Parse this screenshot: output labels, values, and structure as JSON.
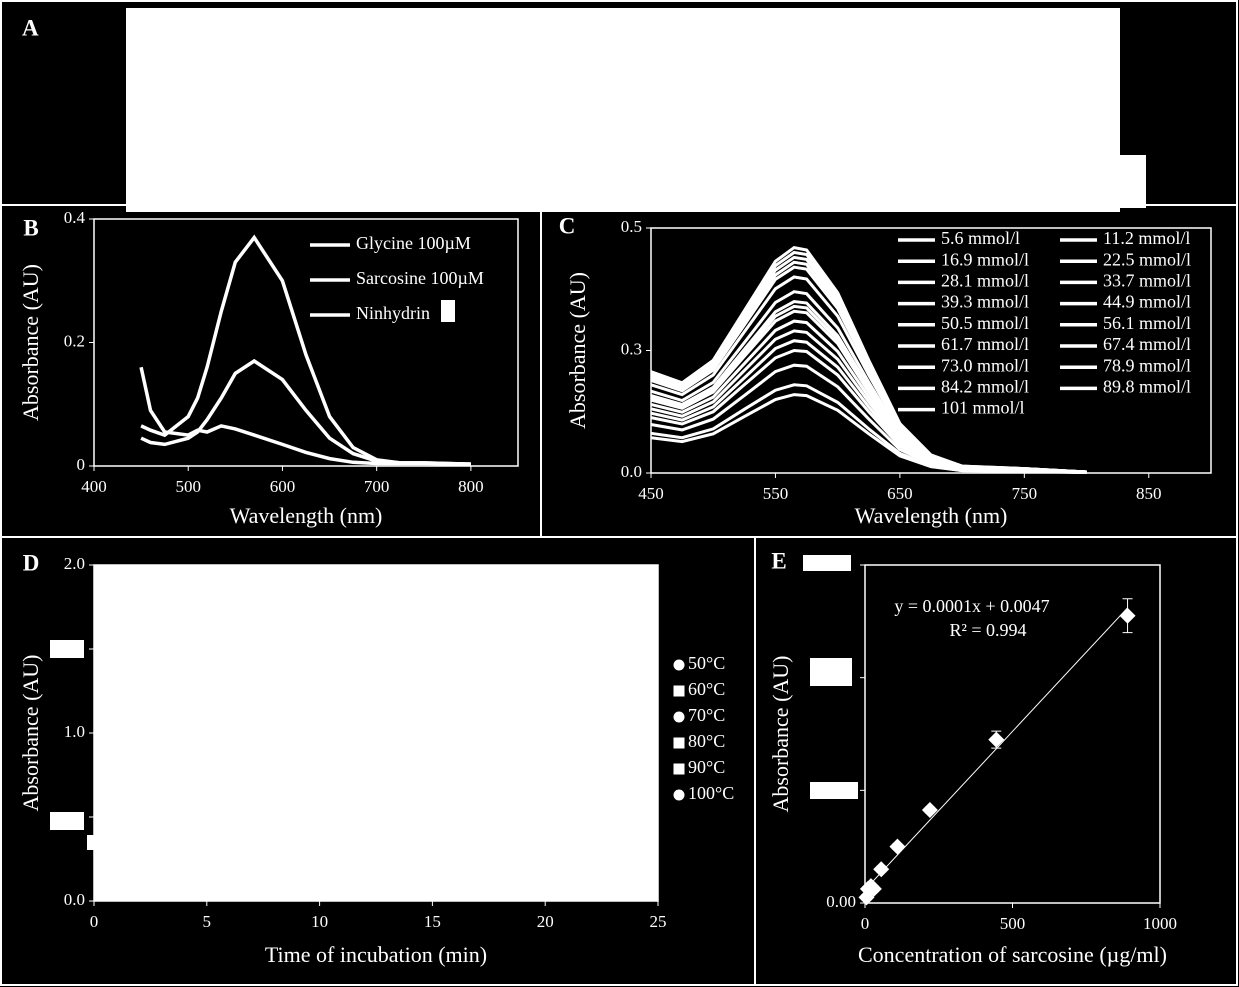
{
  "panel_a_label": "A",
  "chart_data": [
    {
      "type": "line",
      "label": "B",
      "x_label": "Wavelength (nm)",
      "y_label": "Absorbance (AU)",
      "xlim": [
        400,
        850
      ],
      "ylim": [
        0,
        0.4
      ],
      "xticks": [
        400,
        500,
        600,
        700,
        800
      ],
      "yticks": [
        0,
        0.2,
        0.4
      ],
      "x": [
        450,
        460,
        475,
        500,
        510,
        520,
        535,
        550,
        570,
        600,
        625,
        650,
        675,
        700,
        725,
        750,
        800
      ],
      "series": [
        {
          "name": "Glycine 100µM",
          "color": "#ffffff",
          "values": [
            0.065,
            0.058,
            0.05,
            0.08,
            0.11,
            0.16,
            0.25,
            0.33,
            0.37,
            0.3,
            0.18,
            0.08,
            0.03,
            0.01,
            0.005,
            0.005,
            0.003
          ]
        },
        {
          "name": "Sarcosine 100µM",
          "color": "#ffffff",
          "values": [
            0.045,
            0.038,
            0.035,
            0.045,
            0.055,
            0.075,
            0.11,
            0.15,
            0.17,
            0.14,
            0.09,
            0.045,
            0.02,
            0.008,
            0.005,
            0.005,
            0.003
          ]
        },
        {
          "name": "Ninhydrin",
          "color": "#ffffff",
          "values": [
            0.16,
            0.09,
            0.055,
            0.05,
            0.058,
            0.055,
            0.065,
            0.06,
            0.05,
            0.035,
            0.022,
            0.012,
            0.006,
            0.004,
            0.004,
            0.004,
            0.003
          ]
        }
      ]
    },
    {
      "type": "line",
      "label": "C",
      "x_label": "Wavelength (nm)",
      "y_label": "Absorbance (AU)",
      "xlim": [
        450,
        900
      ],
      "ylim": [
        0,
        0.5
      ],
      "xticks": [
        450,
        550,
        650,
        750,
        850
      ],
      "yticks": [
        {
          "value": 0,
          "label": "0.0"
        },
        {
          "value": 0.25,
          "label": "0.3"
        },
        {
          "value": 0.5,
          "label": "0.5"
        }
      ],
      "x": [
        450,
        475,
        500,
        525,
        550,
        565,
        575,
        600,
        625,
        650,
        675,
        700,
        750,
        800
      ],
      "series": [
        {
          "name": "5.6 mmol/l",
          "color": "#ffffff",
          "values": [
            0.072,
            0.064,
            0.08,
            0.115,
            0.15,
            0.16,
            0.158,
            0.128,
            0.08,
            0.035,
            0.013,
            0.005,
            0.003,
            0.001
          ]
        },
        {
          "name": "11.2 mmol/l",
          "color": "#ffffff",
          "values": [
            0.081,
            0.072,
            0.09,
            0.13,
            0.169,
            0.18,
            0.178,
            0.144,
            0.09,
            0.04,
            0.014,
            0.005,
            0.004,
            0.001
          ]
        },
        {
          "name": "16.9 mmol/l",
          "color": "#ffffff",
          "values": [
            0.099,
            0.088,
            0.11,
            0.158,
            0.207,
            0.22,
            0.218,
            0.176,
            0.11,
            0.048,
            0.018,
            0.007,
            0.004,
            0.001
          ]
        },
        {
          "name": "22.5 mmol/l",
          "color": "#ffffff",
          "values": [
            0.113,
            0.1,
            0.125,
            0.18,
            0.235,
            0.25,
            0.248,
            0.2,
            0.125,
            0.055,
            0.02,
            0.008,
            0.005,
            0.001
          ]
        },
        {
          "name": "28.1 mmol/l",
          "color": "#ffffff",
          "values": [
            0.122,
            0.108,
            0.135,
            0.194,
            0.254,
            0.27,
            0.267,
            0.216,
            0.135,
            0.059,
            0.022,
            0.008,
            0.005,
            0.001
          ]
        },
        {
          "name": "33.7 mmol/l",
          "color": "#ffffff",
          "values": [
            0.131,
            0.116,
            0.145,
            0.209,
            0.273,
            0.29,
            0.287,
            0.232,
            0.145,
            0.064,
            0.023,
            0.009,
            0.006,
            0.001
          ]
        },
        {
          "name": "39.3 mmol/l",
          "color": "#ffffff",
          "values": [
            0.14,
            0.124,
            0.155,
            0.223,
            0.291,
            0.31,
            0.307,
            0.248,
            0.155,
            0.068,
            0.025,
            0.009,
            0.006,
            0.002
          ]
        },
        {
          "name": "44.9 mmol/l",
          "color": "#ffffff",
          "values": [
            0.149,
            0.132,
            0.165,
            0.238,
            0.31,
            0.33,
            0.327,
            0.264,
            0.165,
            0.073,
            0.026,
            0.01,
            0.007,
            0.002
          ]
        },
        {
          "name": "50.5 mmol/l",
          "color": "#ffffff",
          "values": [
            0.153,
            0.136,
            0.17,
            0.245,
            0.32,
            0.34,
            0.337,
            0.272,
            0.17,
            0.075,
            0.027,
            0.01,
            0.007,
            0.002
          ]
        },
        {
          "name": "56.1 mmol/l",
          "color": "#ffffff",
          "values": [
            0.158,
            0.14,
            0.175,
            0.252,
            0.329,
            0.35,
            0.347,
            0.28,
            0.175,
            0.077,
            0.028,
            0.011,
            0.007,
            0.002
          ]
        },
        {
          "name": "61.7 mmol/l",
          "color": "#ffffff",
          "values": [
            0.167,
            0.148,
            0.185,
            0.266,
            0.348,
            0.37,
            0.366,
            0.296,
            0.185,
            0.081,
            0.03,
            0.011,
            0.007,
            0.002
          ]
        },
        {
          "name": "67.4 mmol/l",
          "color": "#ffffff",
          "values": [
            0.18,
            0.16,
            0.2,
            0.288,
            0.376,
            0.4,
            0.396,
            0.32,
            0.2,
            0.088,
            0.032,
            0.012,
            0.008,
            0.002
          ]
        },
        {
          "name": "73.0 mmol/l",
          "color": "#ffffff",
          "values": [
            0.189,
            0.168,
            0.21,
            0.302,
            0.395,
            0.42,
            0.416,
            0.336,
            0.21,
            0.092,
            0.034,
            0.013,
            0.008,
            0.002
          ]
        },
        {
          "name": "78.9 mmol/l",
          "color": "#ffffff",
          "values": [
            0.194,
            0.172,
            0.215,
            0.31,
            0.404,
            0.43,
            0.426,
            0.344,
            0.215,
            0.095,
            0.034,
            0.013,
            0.009,
            0.002
          ]
        },
        {
          "name": "84.2 mmol/l",
          "color": "#ffffff",
          "values": [
            0.198,
            0.176,
            0.22,
            0.317,
            0.414,
            0.44,
            0.436,
            0.352,
            0.22,
            0.097,
            0.035,
            0.013,
            0.009,
            0.002
          ]
        },
        {
          "name": "89.8 mmol/l",
          "color": "#ffffff",
          "values": [
            0.203,
            0.18,
            0.225,
            0.324,
            0.423,
            0.45,
            0.446,
            0.36,
            0.225,
            0.099,
            0.036,
            0.014,
            0.009,
            0.002
          ]
        },
        {
          "name": "101 mmol/l",
          "color": "#ffffff",
          "values": [
            0.207,
            0.184,
            0.23,
            0.331,
            0.432,
            0.46,
            0.455,
            0.368,
            0.23,
            0.101,
            0.037,
            0.014,
            0.009,
            0.002
          ]
        }
      ]
    },
    {
      "type": "scatter",
      "label": "D",
      "x_label": "Time of incubation (min)",
      "y_label": "Absorbance (AU)",
      "xlim": [
        0,
        25
      ],
      "ylim": [
        0,
        2
      ],
      "xticks": [
        0,
        5,
        10,
        15,
        20,
        25
      ],
      "yticks": [
        {
          "value": 0,
          "label": "0.0"
        },
        {
          "value": 0.5,
          "label": null
        },
        {
          "value": 1,
          "label": "1.0"
        },
        {
          "value": 1.5,
          "label": null
        },
        {
          "value": 2,
          "label": "2.0"
        }
      ],
      "series": [
        {
          "name": "50°C",
          "color": "#ffffff",
          "marker": "circle"
        },
        {
          "name": "60°C",
          "color": "#ffffff",
          "marker": "square"
        },
        {
          "name": "70°C",
          "color": "#ffffff",
          "marker": "circle"
        },
        {
          "name": "80°C",
          "color": "#ffffff",
          "marker": "square"
        },
        {
          "name": "90°C",
          "color": "#ffffff",
          "marker": "square"
        },
        {
          "name": "100°C",
          "color": "#ffffff",
          "marker": "circle"
        }
      ]
    },
    {
      "type": "scatter",
      "label": "E",
      "x_label": "Concentration of sarcosine (µg/ml)",
      "y_label": "Absorbance (AU)",
      "xlim": [
        0,
        1000
      ],
      "ylim": [
        0,
        0.12
      ],
      "xticks": [
        0,
        500,
        1000
      ],
      "yticks": [
        {
          "value": 0,
          "label": "0.00"
        },
        {
          "value": 0.04,
          "label": null
        },
        {
          "value": 0.08,
          "label": null
        },
        {
          "value": 0.12,
          "label": null
        }
      ],
      "x": [
        5,
        10,
        20,
        30,
        55,
        110,
        220,
        445,
        890
      ],
      "values": [
        0.002,
        0.005,
        0.006,
        0.005,
        0.012,
        0.02,
        0.033,
        0.058,
        0.102
      ],
      "errors": [
        0.001,
        0.001,
        0.001,
        0.001,
        0.001,
        0.001,
        0.001,
        0.003,
        0.006
      ],
      "color": "#ffffff",
      "equation": "y = 0.0001x + 0.0047",
      "r_squared": "R² = 0.994"
    }
  ]
}
